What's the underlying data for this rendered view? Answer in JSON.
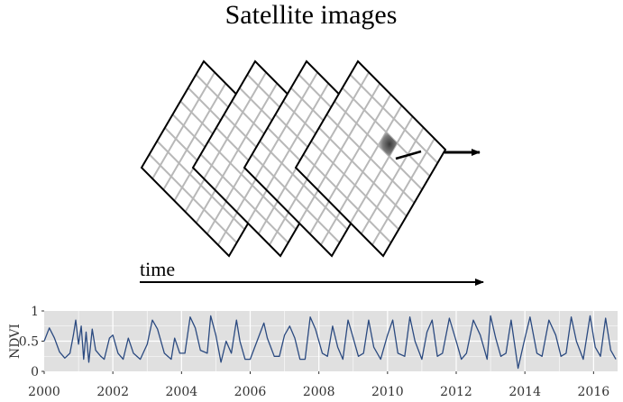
{
  "title": "Satellite images",
  "time_label": "time",
  "chart_data": {
    "type": "line",
    "ylabel": "NDVI",
    "ylim": [
      0,
      1
    ],
    "xlim": [
      2000,
      2016.7
    ],
    "y_ticks": [
      "0",
      "0.5",
      "1"
    ],
    "x_ticks": [
      "2000",
      "2002",
      "2004",
      "2006",
      "2008",
      "2010",
      "2012",
      "2014",
      "2016"
    ],
    "grid": true,
    "colors": {
      "line": "#2b4a80",
      "panel": "#e0e0e0",
      "grid": "#ffffff"
    },
    "series": [
      {
        "x": [
          2000.0,
          2000.15,
          2000.3,
          2000.45,
          2000.6,
          2000.75,
          2000.85,
          2000.92,
          2001.0,
          2001.08,
          2001.15,
          2001.22,
          2001.3,
          2001.4,
          2001.5,
          2001.65,
          2001.75,
          2001.9,
          2002.0,
          2002.15,
          2002.3,
          2002.45,
          2002.6,
          2002.8,
          2003.0,
          2003.15,
          2003.3,
          2003.5,
          2003.7,
          2003.8,
          2003.95,
          2004.1,
          2004.25,
          2004.4,
          2004.55,
          2004.75,
          2004.85,
          2005.0,
          2005.15,
          2005.3,
          2005.45,
          2005.6,
          2005.7,
          2005.85,
          2006.0,
          2006.2,
          2006.4,
          2006.5,
          2006.7,
          2006.85,
          2007.0,
          2007.15,
          2007.3,
          2007.45,
          2007.6,
          2007.75,
          2007.9,
          2008.1,
          2008.25,
          2008.4,
          2008.55,
          2008.7,
          2008.85,
          2009.0,
          2009.15,
          2009.3,
          2009.45,
          2009.6,
          2009.8,
          2010.0,
          2010.15,
          2010.3,
          2010.5,
          2010.65,
          2010.8,
          2011.0,
          2011.15,
          2011.3,
          2011.45,
          2011.6,
          2011.8,
          2012.0,
          2012.15,
          2012.3,
          2012.5,
          2012.7,
          2012.9,
          2013.0,
          2013.15,
          2013.3,
          2013.45,
          2013.6,
          2013.8,
          2014.0,
          2014.15,
          2014.35,
          2014.5,
          2014.7,
          2014.9,
          2015.05,
          2015.2,
          2015.35,
          2015.5,
          2015.7,
          2015.9,
          2016.05,
          2016.2,
          2016.35,
          2016.5,
          2016.65
        ],
        "y": [
          0.5,
          0.72,
          0.55,
          0.32,
          0.22,
          0.3,
          0.6,
          0.85,
          0.45,
          0.75,
          0.2,
          0.65,
          0.15,
          0.7,
          0.35,
          0.25,
          0.2,
          0.55,
          0.6,
          0.3,
          0.2,
          0.55,
          0.3,
          0.2,
          0.45,
          0.85,
          0.7,
          0.3,
          0.2,
          0.55,
          0.3,
          0.3,
          0.9,
          0.72,
          0.35,
          0.3,
          0.92,
          0.6,
          0.15,
          0.5,
          0.3,
          0.85,
          0.5,
          0.2,
          0.2,
          0.5,
          0.8,
          0.55,
          0.25,
          0.25,
          0.6,
          0.75,
          0.55,
          0.2,
          0.2,
          0.9,
          0.7,
          0.3,
          0.25,
          0.75,
          0.4,
          0.2,
          0.85,
          0.55,
          0.25,
          0.3,
          0.85,
          0.4,
          0.2,
          0.6,
          0.85,
          0.3,
          0.25,
          0.9,
          0.5,
          0.2,
          0.65,
          0.85,
          0.25,
          0.3,
          0.88,
          0.5,
          0.2,
          0.3,
          0.85,
          0.6,
          0.2,
          0.92,
          0.55,
          0.25,
          0.3,
          0.85,
          0.05,
          0.55,
          0.9,
          0.3,
          0.25,
          0.85,
          0.6,
          0.25,
          0.3,
          0.9,
          0.5,
          0.2,
          0.92,
          0.4,
          0.25,
          0.88,
          0.35,
          0.2
        ]
      }
    ]
  }
}
